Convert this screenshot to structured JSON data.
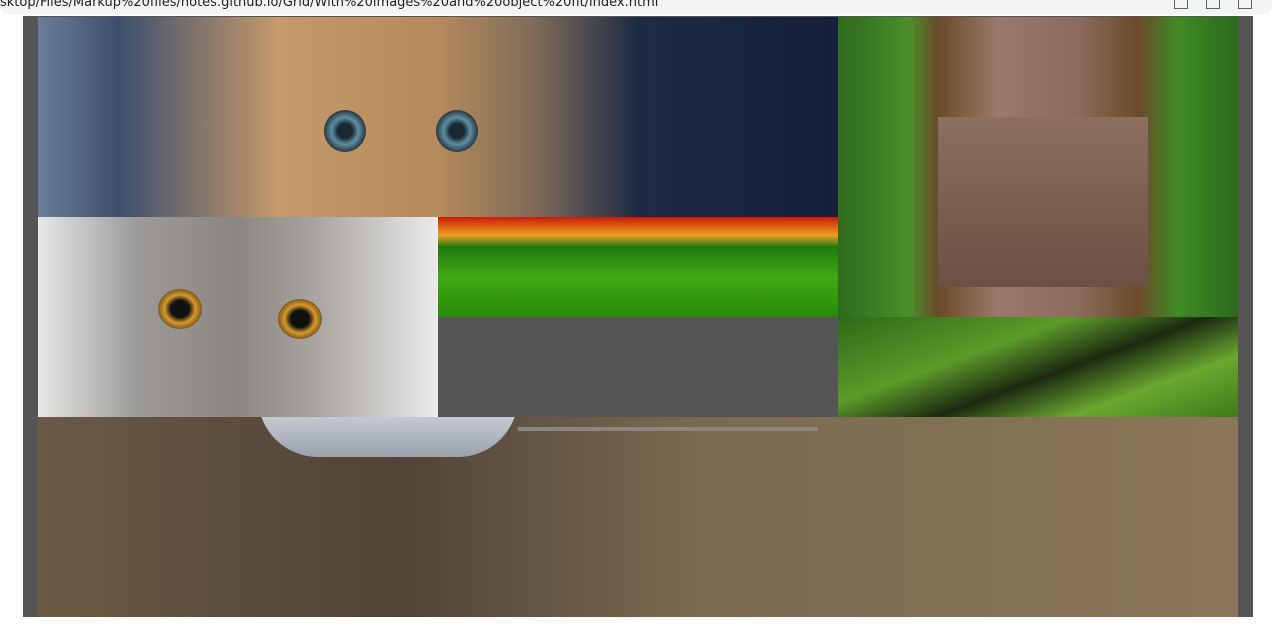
{
  "address_bar": {
    "url": "sktop/Files/Markup%20files/notes.github.io/Grid/With%20images%20and%20object%20fit/index.html"
  }
}
